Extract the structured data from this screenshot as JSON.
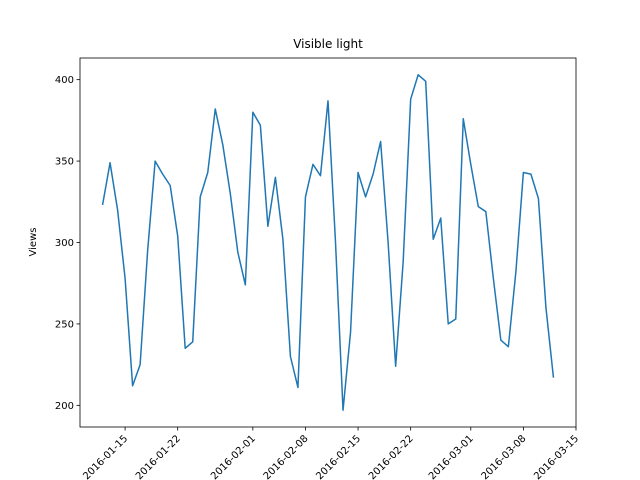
{
  "chart_data": {
    "type": "line",
    "title": "Visible light",
    "ylabel": "Views",
    "color": "#1f77b4",
    "x": [
      "2016-01-12",
      "2016-01-13",
      "2016-01-14",
      "2016-01-15",
      "2016-01-16",
      "2016-01-17",
      "2016-01-18",
      "2016-01-19",
      "2016-01-20",
      "2016-01-21",
      "2016-01-22",
      "2016-01-23",
      "2016-01-24",
      "2016-01-25",
      "2016-01-26",
      "2016-01-27",
      "2016-01-28",
      "2016-01-29",
      "2016-01-30",
      "2016-01-31",
      "2016-02-01",
      "2016-02-02",
      "2016-02-03",
      "2016-02-04",
      "2016-02-05",
      "2016-02-06",
      "2016-02-07",
      "2016-02-08",
      "2016-02-09",
      "2016-02-10",
      "2016-02-11",
      "2016-02-12",
      "2016-02-13",
      "2016-02-14",
      "2016-02-15",
      "2016-02-16",
      "2016-02-17",
      "2016-02-18",
      "2016-02-19",
      "2016-02-20",
      "2016-02-21",
      "2016-02-22",
      "2016-02-23",
      "2016-02-24",
      "2016-02-25",
      "2016-02-26",
      "2016-02-27",
      "2016-02-28",
      "2016-02-29",
      "2016-03-01",
      "2016-03-02",
      "2016-03-03",
      "2016-03-04",
      "2016-03-05",
      "2016-03-06",
      "2016-03-07",
      "2016-03-08",
      "2016-03-09",
      "2016-03-10",
      "2016-03-11",
      "2016-03-12"
    ],
    "values": [
      323,
      349,
      320,
      278,
      212,
      225,
      295,
      350,
      342,
      335,
      304,
      235,
      239,
      328,
      343,
      382,
      360,
      330,
      294,
      274,
      380,
      372,
      310,
      340,
      302,
      230,
      211,
      328,
      348,
      341,
      387,
      300,
      197,
      245,
      343,
      328,
      342,
      362,
      300,
      224,
      288,
      388,
      403,
      399,
      302,
      315,
      250,
      253,
      376,
      348,
      322,
      319,
      278,
      240,
      236,
      282,
      343,
      342,
      327,
      260,
      217
    ],
    "xlim": [
      "2016-01-09",
      "2016-03-15"
    ],
    "xticks": [
      "2016-01-15",
      "2016-01-22",
      "2016-02-01",
      "2016-02-08",
      "2016-02-15",
      "2016-02-22",
      "2016-03-01",
      "2016-03-08",
      "2016-03-15"
    ],
    "ylim": [
      186.7,
      413.3
    ],
    "yticks": [
      200,
      250,
      300,
      350,
      400
    ]
  }
}
